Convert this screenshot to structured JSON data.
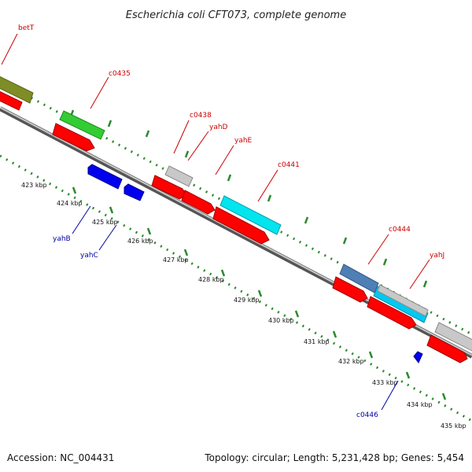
{
  "title": "Escherichia coli CFT073, complete genome",
  "footer": {
    "accession": "Accession: NC_004431",
    "summary": "Topology: circular; Length: 5,231,428 bp; Genes: 5,454"
  },
  "colors": {
    "backbone": "#888888",
    "tick": "#2b8a2b",
    "label_forward": "#cc0000",
    "label_reverse": "#0000aa",
    "cds_forward": "#ff0000",
    "cds_reverse": "#0000ee"
  },
  "scale_ticks": [
    "423 kbp",
    "424 kbp",
    "425 kbp",
    "426 kbp",
    "427 kbp",
    "428 kbp",
    "429 kbp",
    "430 kbp",
    "431 kbp",
    "432 kbp",
    "433 kbp",
    "434 kbp",
    "435 kbp"
  ],
  "gene_labels": {
    "forward": [
      "betT",
      "c0435",
      "c0438",
      "yahD",
      "yahE",
      "c0441",
      "c0444",
      "yahJ"
    ],
    "reverse": [
      "yahB",
      "yahC",
      "c0446"
    ]
  }
}
